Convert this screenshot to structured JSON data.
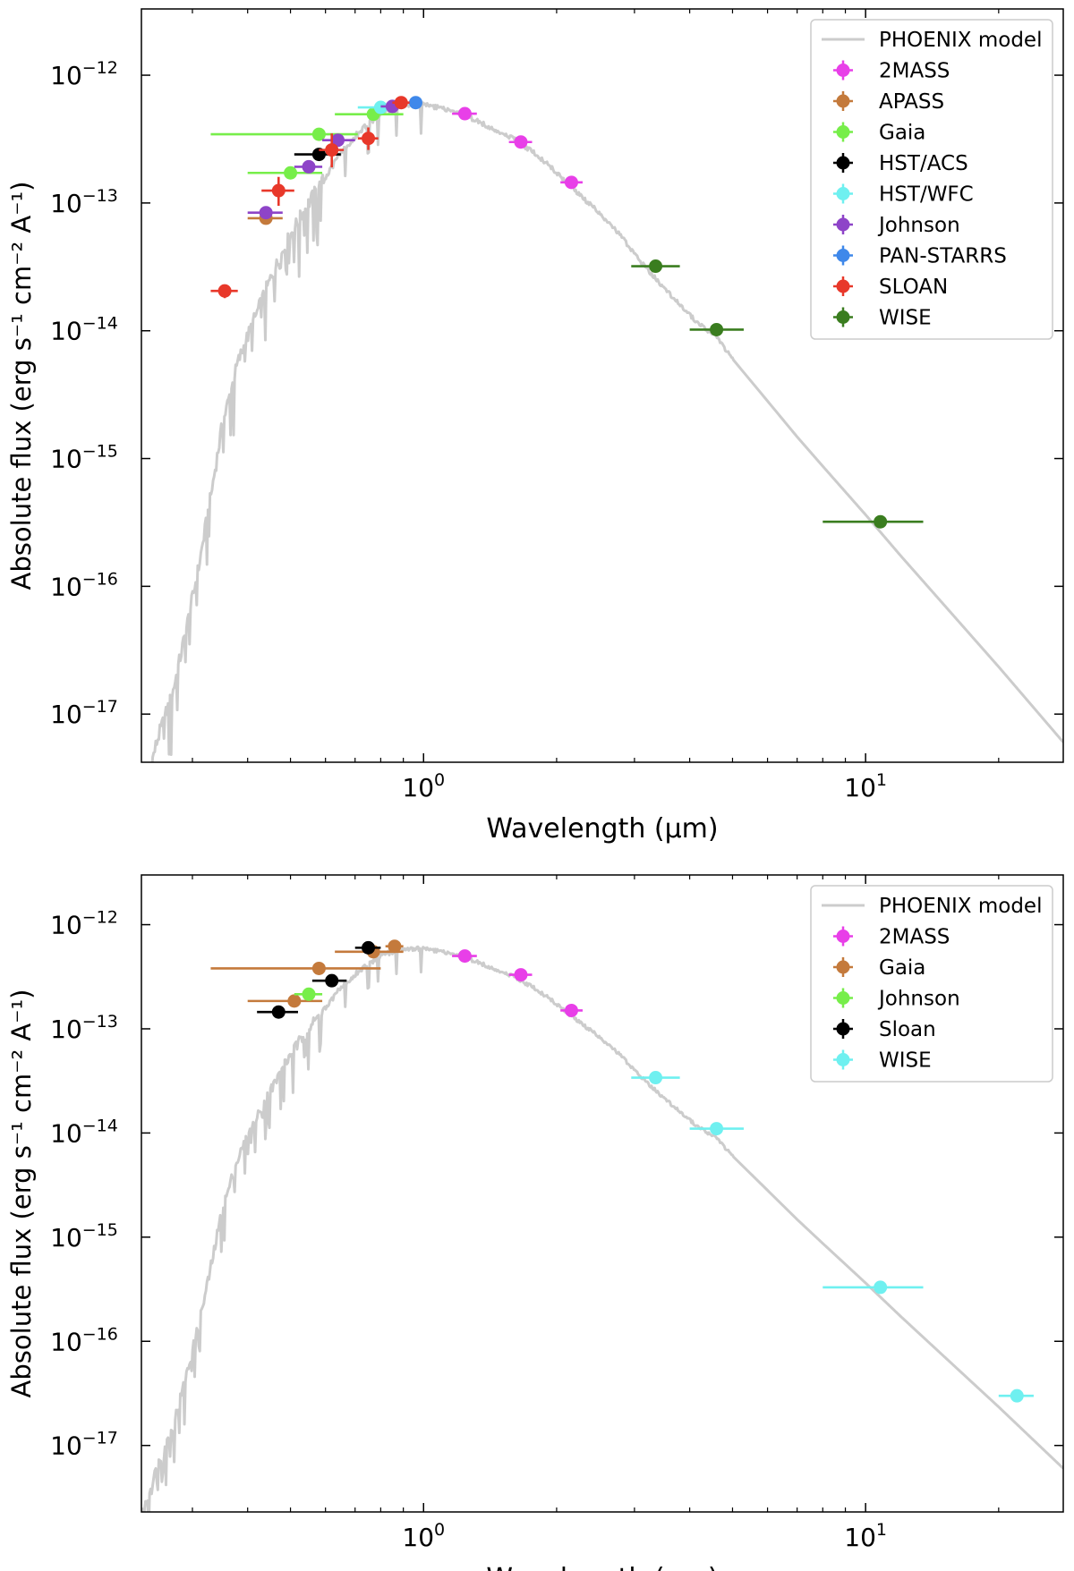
{
  "chart_data": [
    {
      "type": "scatter",
      "xlabel": "Wavelength (μm)",
      "ylabel": "Absolute flux (erg s⁻¹ cm⁻² A⁻¹)",
      "xscale": "log",
      "yscale": "log",
      "xlim": [
        0.23,
        28
      ],
      "ylim": [
        4.2e-18,
        3.3e-12
      ],
      "xticks": [
        {
          "value": 1,
          "base": "10",
          "exp": "0"
        },
        {
          "value": 10,
          "base": "10",
          "exp": "1"
        }
      ],
      "yticks": [
        {
          "value": 1e-12,
          "base": "10",
          "exp": "−12"
        },
        {
          "value": 1e-13,
          "base": "10",
          "exp": "−13"
        },
        {
          "value": 1e-14,
          "base": "10",
          "exp": "−14"
        },
        {
          "value": 1e-15,
          "base": "10",
          "exp": "−15"
        },
        {
          "value": 1e-16,
          "base": "10",
          "exp": "−16"
        },
        {
          "value": 1e-17,
          "base": "10",
          "exp": "−17"
        }
      ],
      "legend_position": "top-right",
      "model": {
        "name": "PHOENIX model",
        "color": "#cccccc"
      },
      "series": [
        {
          "name": "2MASS",
          "color": "#e83fe8",
          "points": [
            {
              "x": 1.24,
              "y": 5e-13,
              "xerr": [
                1.16,
                1.32
              ]
            },
            {
              "x": 1.66,
              "y": 3e-13,
              "xerr": [
                1.56,
                1.76
              ]
            },
            {
              "x": 2.16,
              "y": 1.45e-13,
              "xerr": [
                2.04,
                2.29
              ]
            }
          ]
        },
        {
          "name": "APASS",
          "color": "#c47a3c",
          "points": [
            {
              "x": 0.44,
              "y": 7.6e-14,
              "xerr": [
                0.4,
                0.48
              ]
            }
          ]
        },
        {
          "name": "Gaia",
          "color": "#77ee4a",
          "points": [
            {
              "x": 0.5,
              "y": 1.72e-13,
              "xerr": [
                0.4,
                0.59
              ]
            },
            {
              "x": 0.58,
              "y": 3.45e-13,
              "xerr": [
                0.33,
                0.71
              ]
            },
            {
              "x": 0.77,
              "y": 4.95e-13,
              "xerr": [
                0.63,
                0.9
              ]
            }
          ]
        },
        {
          "name": "HST/ACS",
          "color": "#000000",
          "points": [
            {
              "x": 0.58,
              "y": 2.4e-13,
              "xerr": [
                0.51,
                0.65
              ]
            }
          ]
        },
        {
          "name": "HST/WFC",
          "color": "#6ff0f0",
          "points": [
            {
              "x": 0.8,
              "y": 5.6e-13,
              "xerr": [
                0.71,
                0.89
              ]
            }
          ]
        },
        {
          "name": "Johnson",
          "color": "#8e44c8",
          "points": [
            {
              "x": 0.44,
              "y": 8.4e-14,
              "xerr": [
                0.4,
                0.48
              ]
            },
            {
              "x": 0.55,
              "y": 1.92e-13,
              "xerr": [
                0.51,
                0.59
              ]
            },
            {
              "x": 0.64,
              "y": 3.1e-13,
              "xerr": [
                0.59,
                0.7
              ]
            },
            {
              "x": 0.85,
              "y": 5.7e-13,
              "xerr": [
                0.8,
                0.9
              ]
            }
          ]
        },
        {
          "name": "PAN-STARRS",
          "color": "#3f88ea",
          "points": [
            {
              "x": 0.96,
              "y": 6.1e-13,
              "xerr": [
                0.93,
                0.99
              ]
            }
          ]
        },
        {
          "name": "SLOAN",
          "color": "#e8382a",
          "points": [
            {
              "x": 0.355,
              "y": 2.05e-14,
              "xerr": [
                0.33,
                0.38
              ],
              "yerr": [
                1.8e-14,
                2.3e-14
              ]
            },
            {
              "x": 0.47,
              "y": 1.25e-13,
              "xerr": [
                0.43,
                0.51
              ],
              "yerr": [
                9.5e-14,
                1.6e-13
              ]
            },
            {
              "x": 0.62,
              "y": 2.6e-13,
              "xerr": [
                0.58,
                0.66
              ],
              "yerr": [
                1.9e-13,
                3.5e-13
              ]
            },
            {
              "x": 0.75,
              "y": 3.2e-13,
              "xerr": [
                0.71,
                0.79
              ],
              "yerr": [
                2.6e-13,
                3.9e-13
              ]
            },
            {
              "x": 0.89,
              "y": 6.1e-13,
              "xerr": [
                0.85,
                0.93
              ]
            }
          ]
        },
        {
          "name": "WISE",
          "color": "#3a7d1f",
          "points": [
            {
              "x": 3.35,
              "y": 3.2e-14,
              "xerr": [
                2.95,
                3.8
              ]
            },
            {
              "x": 4.6,
              "y": 1.02e-14,
              "xerr": [
                4.0,
                5.3
              ]
            },
            {
              "x": 10.8,
              "y": 3.2e-16,
              "xerr": [
                8.0,
                13.5
              ]
            }
          ]
        }
      ]
    },
    {
      "type": "scatter",
      "xlabel": "Wavelength (μm)",
      "ylabel": "Absolute flux (erg s⁻¹ cm⁻² A⁻¹)",
      "xscale": "log",
      "yscale": "log",
      "xlim": [
        0.23,
        28
      ],
      "ylim": [
        2.3e-18,
        3e-12
      ],
      "xticks": [
        {
          "value": 1,
          "base": "10",
          "exp": "0"
        },
        {
          "value": 10,
          "base": "10",
          "exp": "1"
        }
      ],
      "yticks": [
        {
          "value": 1e-12,
          "base": "10",
          "exp": "−12"
        },
        {
          "value": 1e-13,
          "base": "10",
          "exp": "−13"
        },
        {
          "value": 1e-14,
          "base": "10",
          "exp": "−14"
        },
        {
          "value": 1e-15,
          "base": "10",
          "exp": "−15"
        },
        {
          "value": 1e-16,
          "base": "10",
          "exp": "−16"
        },
        {
          "value": 1e-17,
          "base": "10",
          "exp": "−17"
        }
      ],
      "legend_position": "top-right",
      "model": {
        "name": "PHOENIX model",
        "color": "#cccccc"
      },
      "series": [
        {
          "name": "2MASS",
          "color": "#e83fe8",
          "points": [
            {
              "x": 1.24,
              "y": 5e-13,
              "xerr": [
                1.16,
                1.32
              ]
            },
            {
              "x": 1.66,
              "y": 3.3e-13,
              "xerr": [
                1.56,
                1.76
              ]
            },
            {
              "x": 2.16,
              "y": 1.5e-13,
              "xerr": [
                2.04,
                2.29
              ]
            }
          ]
        },
        {
          "name": "Gaia",
          "color": "#c47a3c",
          "points": [
            {
              "x": 0.51,
              "y": 1.85e-13,
              "xerr": [
                0.4,
                0.59
              ]
            },
            {
              "x": 0.58,
              "y": 3.8e-13,
              "xerr": [
                0.33,
                0.8
              ]
            },
            {
              "x": 0.77,
              "y": 5.5e-13,
              "xerr": [
                0.63,
                0.9
              ]
            },
            {
              "x": 0.86,
              "y": 6.2e-13,
              "xerr": [
                0.82,
                0.9
              ]
            }
          ]
        },
        {
          "name": "Johnson",
          "color": "#77ee4a",
          "points": [
            {
              "x": 0.55,
              "y": 2.15e-13,
              "xerr": [
                0.51,
                0.59
              ]
            }
          ]
        },
        {
          "name": "Sloan",
          "color": "#000000",
          "points": [
            {
              "x": 0.47,
              "y": 1.45e-13,
              "xerr": [
                0.42,
                0.52
              ]
            },
            {
              "x": 0.62,
              "y": 2.9e-13,
              "xerr": [
                0.56,
                0.67
              ]
            },
            {
              "x": 0.75,
              "y": 6e-13,
              "xerr": [
                0.7,
                0.8
              ]
            }
          ]
        },
        {
          "name": "WISE",
          "color": "#6ff0f0",
          "points": [
            {
              "x": 3.35,
              "y": 3.4e-14,
              "xerr": [
                2.95,
                3.8
              ]
            },
            {
              "x": 4.6,
              "y": 1.1e-14,
              "xerr": [
                4.0,
                5.3
              ]
            },
            {
              "x": 10.8,
              "y": 3.3e-16,
              "xerr": [
                8.0,
                13.5
              ]
            },
            {
              "x": 22.0,
              "y": 3e-17,
              "xerr": [
                20.0,
                24.0
              ]
            }
          ]
        }
      ]
    }
  ]
}
